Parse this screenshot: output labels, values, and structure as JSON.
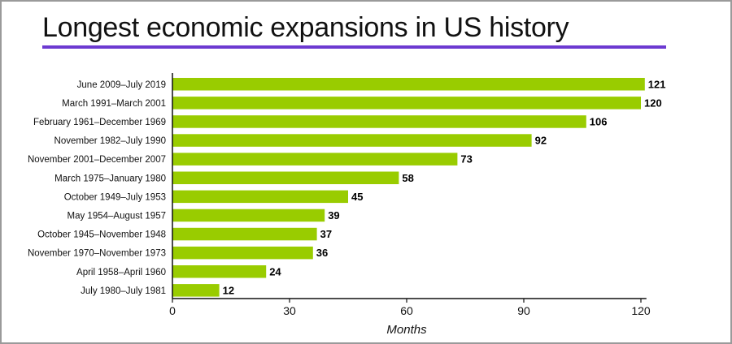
{
  "chart_data": {
    "type": "bar",
    "orientation": "horizontal",
    "title": "Longest economic expansions in US history",
    "xlabel": "Months",
    "ylabel": "",
    "xlim": [
      0,
      121
    ],
    "xticks": [
      0,
      30,
      60,
      90,
      120
    ],
    "grid": false,
    "legend": "none",
    "categories": [
      "June 2009–July 2019",
      "March 1991–March 2001",
      "February 1961–December 1969",
      "November 1982–July 1990",
      "November 2001–December 2007",
      "March 1975–January 1980",
      "October 1949–July 1953",
      "May 1954–August 1957",
      "October 1945–November 1948",
      "November 1970–November 1973",
      "April 1958–April 1960",
      "July 1980–July 1981"
    ],
    "values": [
      121,
      120,
      106,
      92,
      73,
      58,
      45,
      39,
      37,
      36,
      24,
      12
    ],
    "colors": {
      "bar": "#99cc00",
      "accent_rule": "#6c3ad1",
      "axis": "#111111"
    }
  }
}
